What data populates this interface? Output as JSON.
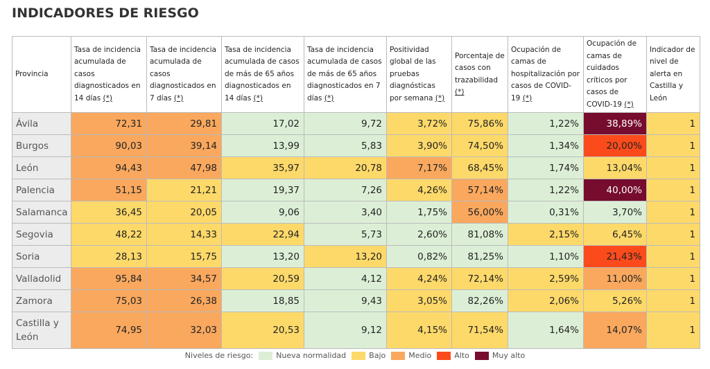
{
  "header": {
    "title": "INDICADORES DE RIESGO"
  },
  "table": {
    "columns": [
      {
        "text": "Provincia"
      },
      {
        "text": "Tasa de incidencia acumulada de casos diagnosticados en 14 días",
        "note": "(*)"
      },
      {
        "text": "Tasa de incidencia acumulada de casos diagnosticados en 7 días",
        "note": "(*)"
      },
      {
        "text": "Tasa de incidencia acumulada de casos de más de 65 años diagnosticados en 14 días",
        "note": "(*)"
      },
      {
        "text": "Tasa de incidencia acumulada de casos de más de 65 años diagnosticados en 7 días",
        "note": "(*)"
      },
      {
        "text": "Positividad global de las pruebas diagnósticas por semana",
        "note": "(*)"
      },
      {
        "text": "Porcentaje de casos con trazabilidad",
        "note": "(*)"
      },
      {
        "text": "Ocupación de camas de hospitalización por casos de COVID-19",
        "note": "(*)"
      },
      {
        "text": "Ocupación de camas de cuidados críticos por casos de COVID-19",
        "note": "(*)"
      },
      {
        "text": "Indicador de nivel de alerta en Castilla y León"
      }
    ],
    "rows": [
      {
        "province": "Ávila",
        "cells": [
          "72,31",
          "29,81",
          "17,02",
          "9,72",
          "3,72%",
          "75,86%",
          "1,22%",
          "38,89%",
          "1"
        ],
        "levels": [
          "Medio",
          "Medio",
          "Nueva normalidad",
          "Nueva normalidad",
          "Bajo",
          "Bajo",
          "Nueva normalidad",
          "Muy alto",
          "Bajo"
        ]
      },
      {
        "province": "Burgos",
        "cells": [
          "90,03",
          "39,14",
          "13,99",
          "5,83",
          "3,90%",
          "74,50%",
          "1,34%",
          "20,00%",
          "1"
        ],
        "levels": [
          "Medio",
          "Medio",
          "Nueva normalidad",
          "Nueva normalidad",
          "Bajo",
          "Bajo",
          "Nueva normalidad",
          "Alto",
          "Bajo"
        ]
      },
      {
        "province": "León",
        "cells": [
          "94,43",
          "47,98",
          "35,97",
          "20,78",
          "7,17%",
          "68,45%",
          "1,74%",
          "13,04%",
          "1"
        ],
        "levels": [
          "Medio",
          "Medio",
          "Bajo",
          "Bajo",
          "Medio",
          "Bajo",
          "Nueva normalidad",
          "Bajo",
          "Bajo"
        ]
      },
      {
        "province": "Palencia",
        "cells": [
          "51,15",
          "21,21",
          "19,37",
          "7,26",
          "4,26%",
          "57,14%",
          "1,22%",
          "40,00%",
          "1"
        ],
        "levels": [
          "Medio",
          "Bajo",
          "Nueva normalidad",
          "Nueva normalidad",
          "Bajo",
          "Medio",
          "Nueva normalidad",
          "Muy alto",
          "Bajo"
        ]
      },
      {
        "province": "Salamanca",
        "cells": [
          "36,45",
          "20,05",
          "9,06",
          "3,40",
          "1,75%",
          "56,00%",
          "0,31%",
          "3,70%",
          "1"
        ],
        "levels": [
          "Bajo",
          "Bajo",
          "Nueva normalidad",
          "Nueva normalidad",
          "Nueva normalidad",
          "Medio",
          "Nueva normalidad",
          "Nueva normalidad",
          "Bajo"
        ]
      },
      {
        "province": "Segovia",
        "cells": [
          "48,22",
          "14,33",
          "22,94",
          "5,73",
          "2,60%",
          "81,08%",
          "2,15%",
          "6,45%",
          "1"
        ],
        "levels": [
          "Bajo",
          "Bajo",
          "Bajo",
          "Nueva normalidad",
          "Nueva normalidad",
          "Nueva normalidad",
          "Bajo",
          "Bajo",
          "Bajo"
        ]
      },
      {
        "province": "Soria",
        "cells": [
          "28,13",
          "15,75",
          "13,20",
          "13,20",
          "0,82%",
          "81,25%",
          "1,10%",
          "21,43%",
          "1"
        ],
        "levels": [
          "Bajo",
          "Bajo",
          "Nueva normalidad",
          "Bajo",
          "Nueva normalidad",
          "Nueva normalidad",
          "Nueva normalidad",
          "Alto",
          "Bajo"
        ]
      },
      {
        "province": "Valladolid",
        "cells": [
          "95,84",
          "34,57",
          "20,59",
          "4,12",
          "4,24%",
          "72,14%",
          "2,59%",
          "11,00%",
          "1"
        ],
        "levels": [
          "Medio",
          "Medio",
          "Bajo",
          "Nueva normalidad",
          "Bajo",
          "Bajo",
          "Bajo",
          "Medio",
          "Bajo"
        ]
      },
      {
        "province": "Zamora",
        "cells": [
          "75,03",
          "26,38",
          "18,85",
          "9,43",
          "3,05%",
          "82,26%",
          "2,06%",
          "5,26%",
          "1"
        ],
        "levels": [
          "Medio",
          "Medio",
          "Nueva normalidad",
          "Nueva normalidad",
          "Bajo",
          "Nueva normalidad",
          "Bajo",
          "Bajo",
          "Bajo"
        ]
      },
      {
        "province": "Castilla y León",
        "cells": [
          "74,95",
          "32,03",
          "20,53",
          "9,12",
          "4,15%",
          "71,54%",
          "1,64%",
          "14,07%",
          "1"
        ],
        "levels": [
          "Medio",
          "Medio",
          "Bajo",
          "Nueva normalidad",
          "Bajo",
          "Bajo",
          "Nueva normalidad",
          "Medio",
          "Bajo"
        ]
      }
    ]
  },
  "legend": {
    "label": "Niveles de riesgo:",
    "levels": [
      {
        "name": "Nueva normalidad",
        "color": "#dcefd6"
      },
      {
        "name": "Bajo",
        "color": "#fdd96a"
      },
      {
        "name": "Medio",
        "color": "#f9a85e"
      },
      {
        "name": "Alto",
        "color": "#fb4b1c"
      },
      {
        "name": "Muy alto",
        "color": "#760c2e"
      }
    ]
  }
}
